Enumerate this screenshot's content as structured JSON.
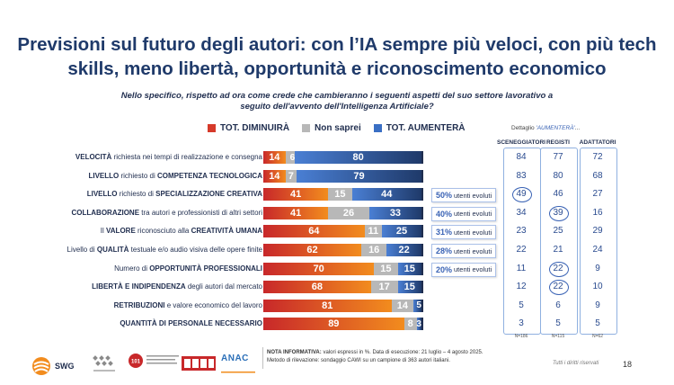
{
  "title": "Previsioni sul futuro degli autori: con l’IA sempre più veloci, con più tech skills, meno libertà, opportunità e riconoscimento economico",
  "subtitle": "Nello specifico, rispetto ad ora come crede che cambieranno i seguenti aspetti del suo settore lavorativo a seguito dell'avvento dell'Intelligenza Artificiale?",
  "legend": [
    {
      "label": "TOT. DIMINUIRÀ",
      "color": "#d63a2a"
    },
    {
      "label": "Non saprei",
      "color": "#b8b8b8"
    },
    {
      "label": "TOT. AUMENTERÀ",
      "color": "#3a6fc4"
    }
  ],
  "dettaglio": {
    "prefix": "Dettaglio ",
    "highlight": "'AUMENTERÀ'",
    "suffix": "..."
  },
  "sectors": [
    "SCENEGGIATORI",
    "REGISTI",
    "ADATTATORI"
  ],
  "n_values": [
    "N=186",
    "N=115",
    "N=62"
  ],
  "evoluti_suffix": "utenti evoluti",
  "chart_data": {
    "type": "bar",
    "orientation": "horizontal-stacked",
    "title": "Previsioni sul futuro degli autori: con l’IA sempre più veloci, con più tech skills, meno libertà, opportunità e riconoscimento economico",
    "categories": [
      [
        "VELOCITÀ",
        " richiesta nei tempi di realizzazione e consegna"
      ],
      [
        "LIVELLO",
        " richiesto di ",
        "COMPETENZA TECNOLOGICA"
      ],
      [
        "LIVELLO",
        " richiesto di ",
        "SPECIALIZZAZIONE CREATIVA"
      ],
      [
        "COLLABORAZIONE",
        " tra autori e professionisti di altri settori"
      ],
      [
        "Il ",
        "VALORE",
        " riconosciuto alla ",
        "CREATIVITÀ UMANA"
      ],
      [
        "Livello di ",
        "QUALITÀ",
        " testuale e/o audio visiva delle opere finite"
      ],
      [
        "Numero di ",
        "OPPORTUNITÀ PROFESSIONALI"
      ],
      [
        "LIBERTÀ E INDIPENDENZA",
        " degli autori dal mercato"
      ],
      [
        "RETRIBUZIONI",
        " e valore economico del lavoro"
      ],
      [
        "QUANTITÀ DI PERSONALE NECESSARIO"
      ]
    ],
    "series": [
      {
        "name": "TOT. DIMINUIRÀ",
        "values": [
          14,
          14,
          41,
          41,
          64,
          62,
          70,
          68,
          81,
          89
        ]
      },
      {
        "name": "Non saprei",
        "values": [
          6,
          7,
          15,
          26,
          11,
          16,
          15,
          17,
          14,
          8
        ]
      },
      {
        "name": "TOT. AUMENTERÀ",
        "values": [
          80,
          79,
          44,
          33,
          25,
          22,
          15,
          15,
          5,
          3
        ]
      }
    ],
    "evoluti": [
      null,
      null,
      "50%",
      "40%",
      "31%",
      "28%",
      "20%",
      null,
      null,
      null
    ],
    "breakdown": {
      "SCENEGGIATORI": [
        84,
        83,
        49,
        34,
        23,
        22,
        11,
        12,
        5,
        3
      ],
      "REGISTI": [
        77,
        80,
        46,
        39,
        25,
        21,
        22,
        22,
        6,
        5
      ],
      "ADATTATORI": [
        72,
        68,
        27,
        16,
        29,
        24,
        9,
        10,
        9,
        5
      ]
    },
    "circled": [
      [
        2,
        "SCENEGGIATORI"
      ],
      [
        3,
        "REGISTI"
      ],
      [
        6,
        "REGISTI"
      ],
      [
        7,
        "REGISTI"
      ]
    ],
    "xlim": [
      0,
      100
    ]
  },
  "footer": {
    "nota_label": "NOTA INFORMATIVA:",
    "nota_text": " valori espressi in %. Data di esecuzione: 21 luglio – 4 agosto 2025.",
    "metodo": "Metodo di rilevazione: sondaggio CAWI su un campione di 363 autori italiani.",
    "rights": "Tutti i diritti riservati",
    "page": "18",
    "swg": "SWG",
    "anac": "ANAC"
  }
}
